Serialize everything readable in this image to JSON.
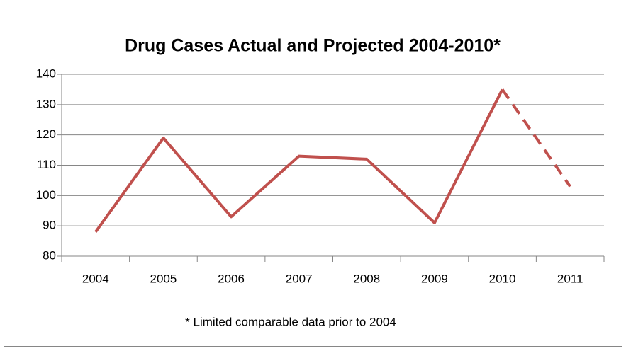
{
  "chart_data": {
    "type": "line",
    "title": "Drug Cases Actual and Projected 2004-2010*",
    "annotation": "* Limited comparable data prior to 2004",
    "categories": [
      "2004",
      "2005",
      "2006",
      "2007",
      "2008",
      "2009",
      "2010",
      "2011"
    ],
    "series": [
      {
        "color": "#c0504d",
        "style": "solid",
        "values": [
          88,
          119,
          93,
          113,
          112,
          91,
          135,
          null
        ]
      },
      {
        "color": "#c0504d",
        "style": "dashed",
        "values": [
          null,
          null,
          null,
          null,
          null,
          null,
          135,
          103
        ]
      }
    ],
    "ylim": [
      80,
      140
    ],
    "yticks": [
      80,
      90,
      100,
      110,
      120,
      130,
      140
    ],
    "grid": true
  }
}
